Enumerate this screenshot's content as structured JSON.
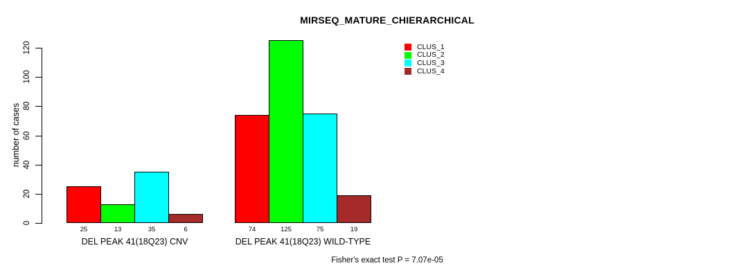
{
  "chart_data": {
    "type": "bar",
    "title": "MIRSEQ_MATURE_CHIERARCHICAL",
    "ylabel": "number of cases",
    "xlabel": "",
    "yticks": [
      0,
      20,
      40,
      60,
      80,
      100,
      120
    ],
    "ylim": [
      0,
      125
    ],
    "grid": false,
    "legend_position": "top-right-inside",
    "categories": [
      "DEL PEAK 41(18Q23) CNV",
      "DEL PEAK 41(18Q23) WILD-TYPE"
    ],
    "series": [
      {
        "name": "CLUS_1",
        "color": "#ff0000",
        "values": [
          25,
          74
        ]
      },
      {
        "name": "CLUS_2",
        "color": "#00ff00",
        "values": [
          13,
          125
        ]
      },
      {
        "name": "CLUS_3",
        "color": "#00ffff",
        "values": [
          35,
          75
        ]
      },
      {
        "name": "CLUS_4",
        "color": "#a52a2a",
        "values": [
          6,
          19
        ]
      }
    ],
    "bar_value_labels_shown": true,
    "footnote": "Fisher's exact test P = 7.07e-05"
  },
  "colors": {
    "axis": "#000000",
    "background": "#ffffff"
  }
}
